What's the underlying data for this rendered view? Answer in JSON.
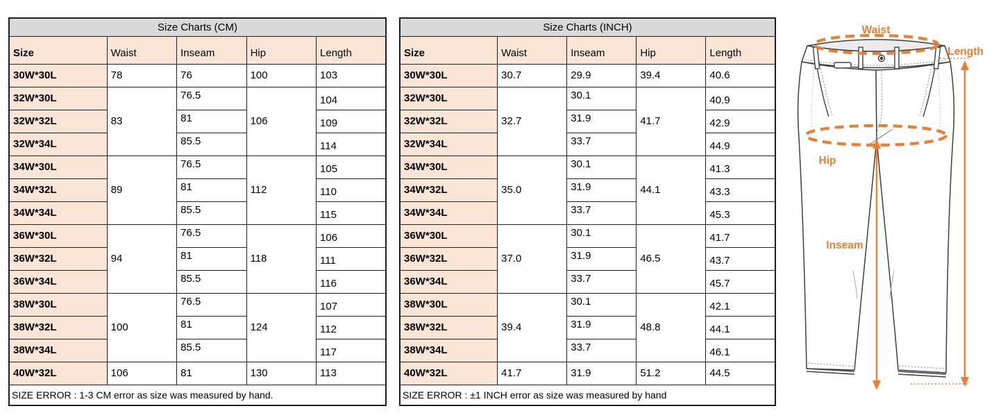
{
  "tables": [
    {
      "name": "cm",
      "title": "Size Charts (CM)",
      "columns": [
        "Size",
        "Waist",
        "Inseam",
        "Hip",
        "Length"
      ],
      "groups": [
        {
          "type": "single",
          "size": "30W*30L",
          "waist": "78",
          "inseam": "76",
          "hip": "100",
          "length": "103"
        },
        {
          "type": "group",
          "waist": "83",
          "hip": "106",
          "rows": [
            [
              "32W*30L",
              "76.5",
              "104"
            ],
            [
              "32W*32L",
              "81",
              "109"
            ],
            [
              "32W*34L",
              "85.5",
              "114"
            ]
          ]
        },
        {
          "type": "group",
          "waist": "89",
          "hip": "112",
          "rows": [
            [
              "34W*30L",
              "76.5",
              "105"
            ],
            [
              "34W*32L",
              "81",
              "110"
            ],
            [
              "34W*34L",
              "85.5",
              "115"
            ]
          ]
        },
        {
          "type": "group",
          "waist": "94",
          "hip": "118",
          "rows": [
            [
              "36W*30L",
              "76.5",
              "106"
            ],
            [
              "36W*32L",
              "81",
              "111"
            ],
            [
              "36W*34L",
              "85.5",
              "116"
            ]
          ]
        },
        {
          "type": "group",
          "waist": "100",
          "hip": "124",
          "rows": [
            [
              "38W*30L",
              "76.5",
              "107"
            ],
            [
              "38W*32L",
              "81",
              "112"
            ],
            [
              "38W*34L",
              "85.5",
              "117"
            ]
          ]
        },
        {
          "type": "single",
          "size": "40W*32L",
          "waist": "106",
          "inseam": "81",
          "hip": "130",
          "length": "113"
        }
      ],
      "footer": "SIZE ERROR : 1-3 CM error as size was measured by hand."
    },
    {
      "name": "inch",
      "title": "Size Charts (INCH)",
      "columns": [
        "Size",
        "Waist",
        "Inseam",
        "Hip",
        "Length"
      ],
      "groups": [
        {
          "type": "single",
          "size": "30W*30L",
          "waist": "30.7",
          "inseam": "29.9",
          "hip": "39.4",
          "length": "40.6"
        },
        {
          "type": "group",
          "waist": "32.7",
          "hip": "41.7",
          "rows": [
            [
              "32W*30L",
              "30.1",
              "40.9"
            ],
            [
              "32W*32L",
              "31.9",
              "42.9"
            ],
            [
              "32W*34L",
              "33.7",
              "44.9"
            ]
          ]
        },
        {
          "type": "group",
          "waist": "35.0",
          "hip": "44.1",
          "rows": [
            [
              "34W*30L",
              "30.1",
              "41.3"
            ],
            [
              "34W*32L",
              "31.9",
              "43.3"
            ],
            [
              "34W*34L",
              "33.7",
              "45.3"
            ]
          ]
        },
        {
          "type": "group",
          "waist": "37.0",
          "hip": "46.5",
          "rows": [
            [
              "36W*30L",
              "30.1",
              "41.7"
            ],
            [
              "36W*32L",
              "31.9",
              "43.7"
            ],
            [
              "36W*34L",
              "33.7",
              "45.7"
            ]
          ]
        },
        {
          "type": "group",
          "waist": "39.4",
          "hip": "48.8",
          "rows": [
            [
              "38W*30L",
              "30.1",
              "42.1"
            ],
            [
              "38W*32L",
              "31.9",
              "44.1"
            ],
            [
              "38W*34L",
              "33.7",
              "46.1"
            ]
          ]
        },
        {
          "type": "single",
          "size": "40W*32L",
          "waist": "41.7",
          "inseam": "31.9",
          "hip": "51.2",
          "length": "44.5"
        }
      ],
      "footer": "SIZE ERROR : ±1 INCH error as size was measured by hand"
    }
  ],
  "chart_data": [
    {
      "type": "table",
      "title": "Size Charts (CM)",
      "columns": [
        "Size",
        "Waist",
        "Inseam",
        "Hip",
        "Length"
      ],
      "rows": [
        [
          "30W*30L",
          78,
          76,
          100,
          103
        ],
        [
          "32W*30L",
          83,
          76.5,
          106,
          104
        ],
        [
          "32W*32L",
          83,
          81,
          106,
          109
        ],
        [
          "32W*34L",
          83,
          85.5,
          106,
          114
        ],
        [
          "34W*30L",
          89,
          76.5,
          112,
          105
        ],
        [
          "34W*32L",
          89,
          81,
          112,
          110
        ],
        [
          "34W*34L",
          89,
          85.5,
          112,
          115
        ],
        [
          "36W*30L",
          94,
          76.5,
          118,
          106
        ],
        [
          "36W*32L",
          94,
          81,
          118,
          111
        ],
        [
          "36W*34L",
          94,
          85.5,
          118,
          116
        ],
        [
          "38W*30L",
          100,
          76.5,
          124,
          107
        ],
        [
          "38W*32L",
          100,
          81,
          124,
          112
        ],
        [
          "38W*34L",
          100,
          85.5,
          124,
          117
        ],
        [
          "40W*32L",
          106,
          81,
          130,
          113
        ]
      ],
      "note": "SIZE ERROR : 1-3 CM error as size was measured by hand."
    },
    {
      "type": "table",
      "title": "Size Charts (INCH)",
      "columns": [
        "Size",
        "Waist",
        "Inseam",
        "Hip",
        "Length"
      ],
      "rows": [
        [
          "30W*30L",
          30.7,
          29.9,
          39.4,
          40.6
        ],
        [
          "32W*30L",
          32.7,
          30.1,
          41.7,
          40.9
        ],
        [
          "32W*32L",
          32.7,
          31.9,
          41.7,
          42.9
        ],
        [
          "32W*34L",
          32.7,
          33.7,
          41.7,
          44.9
        ],
        [
          "34W*30L",
          35.0,
          30.1,
          44.1,
          41.3
        ],
        [
          "34W*32L",
          35.0,
          31.9,
          44.1,
          43.3
        ],
        [
          "34W*34L",
          35.0,
          33.7,
          44.1,
          45.3
        ],
        [
          "36W*30L",
          37.0,
          30.1,
          46.5,
          41.7
        ],
        [
          "36W*32L",
          37.0,
          31.9,
          46.5,
          43.7
        ],
        [
          "36W*34L",
          37.0,
          33.7,
          46.5,
          45.7
        ],
        [
          "38W*30L",
          39.4,
          30.1,
          48.8,
          42.1
        ],
        [
          "38W*32L",
          39.4,
          31.9,
          48.8,
          44.1
        ],
        [
          "38W*34L",
          39.4,
          33.7,
          48.8,
          46.1
        ],
        [
          "40W*32L",
          41.7,
          31.9,
          51.2,
          44.5
        ]
      ],
      "note": "SIZE ERROR : ±1 INCH error as size was measured by hand"
    }
  ],
  "diagram": {
    "labels": {
      "waist": "Waist",
      "length": "Length",
      "hip": "Hip",
      "inseam": "Inseam"
    },
    "accent_color": "#ED7D31"
  },
  "colors": {
    "title_bg": "#d9d9d9",
    "header_bg": "#fbe5d6",
    "border": "#1f1f1f",
    "accent_orange": "#ED7D31"
  }
}
